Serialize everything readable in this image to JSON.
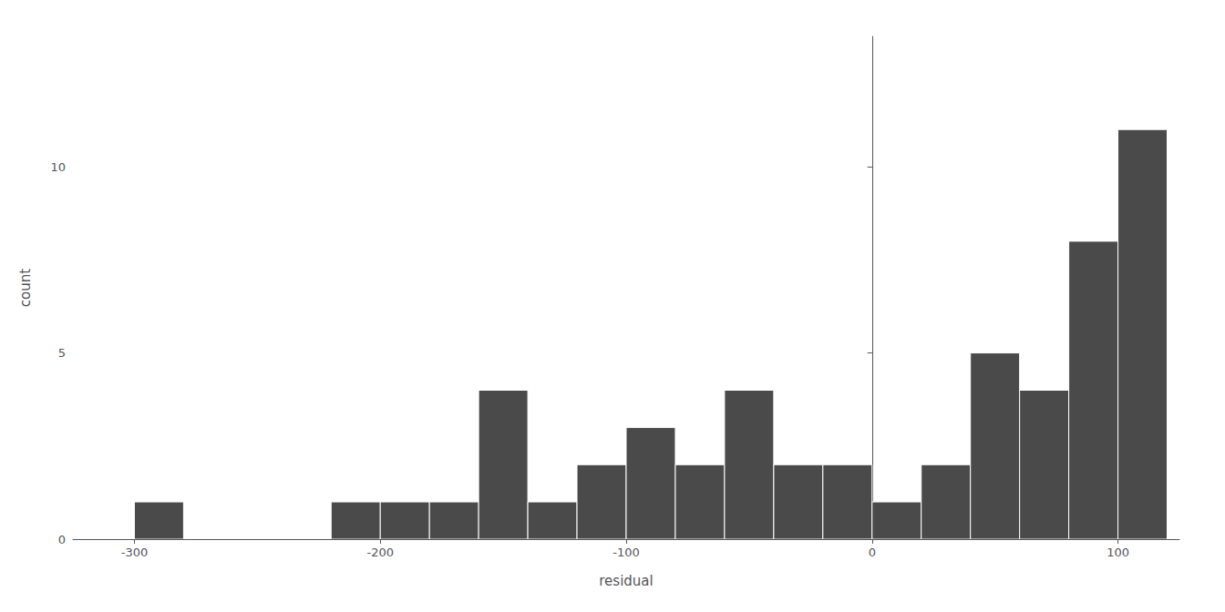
{
  "chart_data": {
    "type": "histogram",
    "bins": [
      -320,
      -300,
      -280,
      -260,
      -240,
      -220,
      -200,
      -180,
      -160,
      -140,
      -120,
      -100,
      -80,
      -60,
      -40,
      -20,
      0,
      20,
      40,
      60,
      80,
      100,
      120
    ],
    "counts": [
      0,
      1,
      0,
      0,
      0,
      1,
      1,
      1,
      4,
      1,
      2,
      3,
      2,
      4,
      2,
      2,
      1,
      2,
      5,
      4,
      8,
      11,
      0
    ],
    "color": "#4a4a4a",
    "xlabel": "residual",
    "ylabel": "count",
    "xlim": [
      -325,
      125
    ],
    "ylim": [
      0,
      13.5
    ],
    "xticks": [
      -300,
      -200,
      -100,
      0,
      100
    ],
    "yticks": [
      0,
      5,
      10
    ],
    "grid": false
  }
}
